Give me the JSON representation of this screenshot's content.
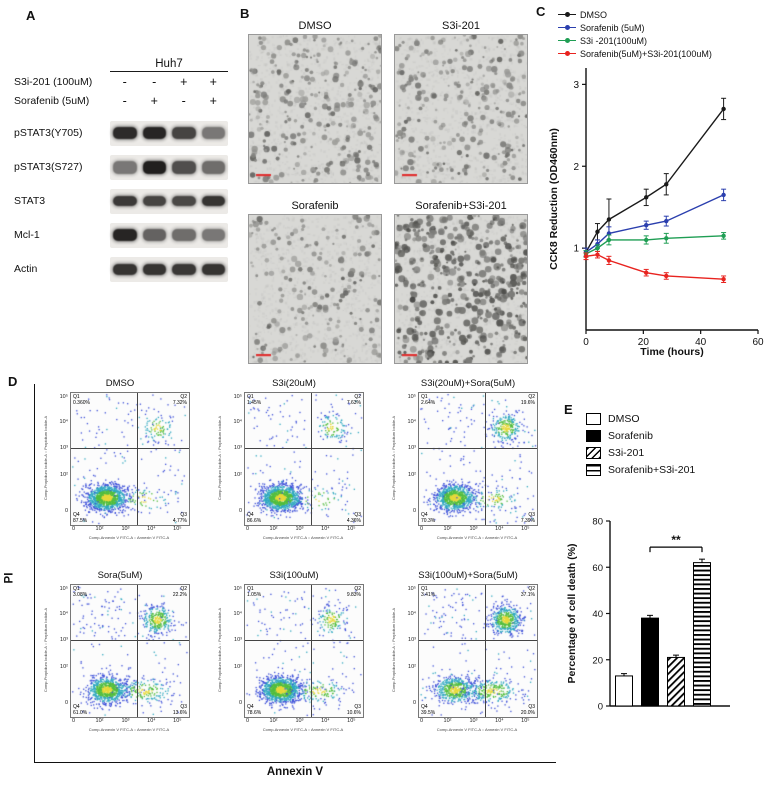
{
  "panel_a": {
    "label": "A",
    "cell_line": "Huh7",
    "treatment_rows": [
      {
        "label": "S3i-201 (100uM)",
        "marks": [
          "-",
          "-",
          "+",
          "+"
        ]
      },
      {
        "label": "Sorafenib (5uM)",
        "marks": [
          "-",
          "+",
          "-",
          "+"
        ]
      }
    ],
    "blots": [
      {
        "label": "pSTAT3(Y705)",
        "bands": [
          0.92,
          0.95,
          0.8,
          0.55
        ]
      },
      {
        "label": "pSTAT3(S727)",
        "bands": [
          0.55,
          0.98,
          0.75,
          0.6
        ]
      },
      {
        "label": "STAT3",
        "bands": [
          0.85,
          0.8,
          0.78,
          0.88
        ]
      },
      {
        "label": "Mcl-1",
        "bands": [
          0.95,
          0.65,
          0.6,
          0.55
        ]
      },
      {
        "label": "Actin",
        "bands": [
          0.88,
          0.88,
          0.86,
          0.88
        ]
      }
    ]
  },
  "panel_b": {
    "label": "B",
    "images": [
      {
        "title": "DMSO",
        "density": 0.55
      },
      {
        "title": "S3i-201",
        "density": 0.5
      },
      {
        "title": "Sorafenib",
        "density": 0.38
      },
      {
        "title": "Sorafenib+S3i-201",
        "density": 0.85
      }
    ]
  },
  "panel_c": {
    "label": "C"
  },
  "panel_d": {
    "label": "D",
    "y_axis_label": "PI",
    "x_axis_label": "Annexin V",
    "plot_y_caption": "Comp-Propidium Iodide-A :: Propidium Iodide-A",
    "plot_x_caption": "Comp-Annexin V FITC-A :: Annexin V FITC-A",
    "tick_labels_y": [
      "10⁵",
      "10⁴",
      "10³",
      "10²",
      "0"
    ],
    "tick_labels_x": [
      "0",
      "10²",
      "10³",
      "10⁴",
      "10⁵"
    ],
    "plots": [
      {
        "title": "DMSO",
        "q1": "0.360%",
        "q2": "7.32%",
        "q3": "4.77%",
        "q4": "87.5%"
      },
      {
        "title": "S3i(20uM)",
        "q1": "1.45%",
        "q2": "7.63%",
        "q3": "4.36%",
        "q4": "86.6%"
      },
      {
        "title": "S3i(20uM)+Sora(5uM)",
        "q1": "2.64%",
        "q2": "19.6%",
        "q3": "7.39%",
        "q4": "70.3%"
      },
      {
        "title": "Sora(5uM)",
        "q1": "3.08%",
        "q2": "22.2%",
        "q3": "13.6%",
        "q4": "61.0%"
      },
      {
        "title": "S3i(100uM)",
        "q1": "1.05%",
        "q2": "9.83%",
        "q3": "10.6%",
        "q4": "78.6%"
      },
      {
        "title": "S3i(100uM)+Sora(5uM)",
        "q1": "3.41%",
        "q2": "37.1%",
        "q3": "20.0%",
        "q4": "39.5%"
      }
    ]
  },
  "panel_e": {
    "label": "E"
  },
  "chart_data": [
    {
      "type": "line",
      "title": "",
      "xlabel": "Time (hours)",
      "ylabel": "CCK8 Reduction (OD460nm)",
      "xlim": [
        0,
        60
      ],
      "ylim": [
        0,
        3.2
      ],
      "xticks": [
        0,
        20,
        40,
        60
      ],
      "yticks": [
        1,
        2,
        3
      ],
      "x": [
        0,
        4,
        8,
        21,
        28,
        48
      ],
      "series": [
        {
          "name": "DMSO",
          "color": "#1a1a1a",
          "values": [
            0.95,
            1.2,
            1.35,
            1.62,
            1.78,
            2.7
          ],
          "errors": [
            0.05,
            0.1,
            0.25,
            0.1,
            0.13,
            0.13
          ]
        },
        {
          "name": "Sorafenib (5uM)",
          "color": "#2b3fae",
          "values": [
            0.95,
            1.05,
            1.18,
            1.28,
            1.33,
            1.65
          ],
          "errors": [
            0.05,
            0.05,
            0.08,
            0.05,
            0.06,
            0.07
          ]
        },
        {
          "name": "S3i -201(100uM)",
          "color": "#1f9e54",
          "values": [
            0.93,
            1.0,
            1.1,
            1.1,
            1.12,
            1.15
          ],
          "errors": [
            0.04,
            0.04,
            0.06,
            0.05,
            0.06,
            0.04
          ]
        },
        {
          "name": "Sorafenib(5uM)+S3i-201(100uM)",
          "color": "#e8231f",
          "values": [
            0.9,
            0.92,
            0.85,
            0.7,
            0.66,
            0.62
          ],
          "errors": [
            0.04,
            0.04,
            0.05,
            0.04,
            0.04,
            0.04
          ]
        }
      ],
      "legend_position": "top-left",
      "grid": false
    },
    {
      "type": "bar",
      "categories": [
        "DMSO",
        "Sorafenib",
        "S3i-201",
        "Sorafenib+S3i-201"
      ],
      "values": [
        13,
        38,
        21,
        62
      ],
      "errors": [
        1,
        1.2,
        1,
        1.5
      ],
      "styles": [
        "white",
        "black",
        "diag",
        "horiz"
      ],
      "ylabel": "Percentage of cell death (%)",
      "ylim": [
        0,
        80
      ],
      "yticks": [
        0,
        20,
        40,
        60,
        80
      ],
      "significance": {
        "label": "**",
        "between": [
          1,
          3
        ]
      },
      "legend_position": "top-left",
      "grid": false
    }
  ]
}
